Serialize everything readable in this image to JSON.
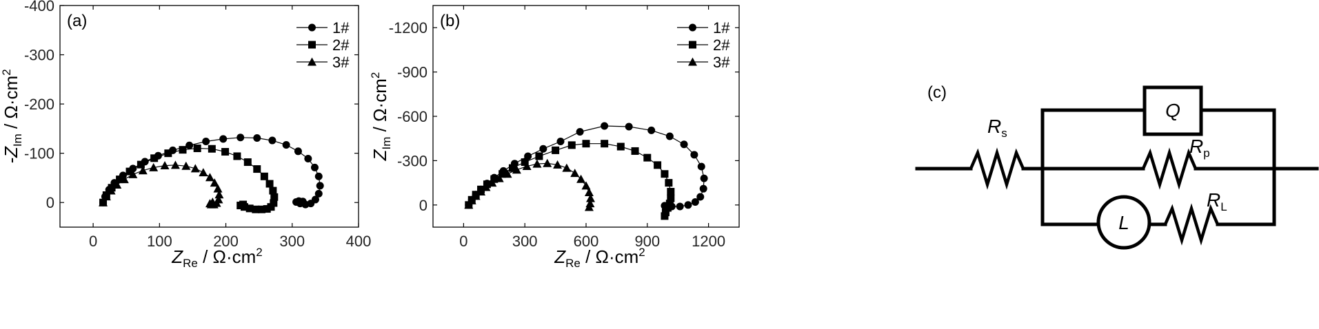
{
  "panels": {
    "a": {
      "label": "(a)"
    },
    "b": {
      "label": "(b)"
    },
    "c": {
      "label": "(c)"
    }
  },
  "axis_text": {
    "x_main": "Z",
    "x_sub": "Re",
    "x_unit": " / Ω·cm",
    "x_sup": "2",
    "y_a_main": "-Z",
    "y_b_main": "Z",
    "y_sub": "Im",
    "y_unit": " / Ω·cm",
    "y_sup": "2"
  },
  "circuit": {
    "rs": "R",
    "rs_sub": "s",
    "q": "Q",
    "rp": "R",
    "rp_sub": "p",
    "l": "L",
    "rl": "R",
    "rl_sub": "L"
  },
  "chart_data": [
    {
      "type": "scatter",
      "panel": "(a)",
      "xlabel": "Z_Re / Ω·cm2",
      "ylabel": "-Z_Im / Ω·cm2",
      "xlim": [
        -50,
        400
      ],
      "ylim": [
        -400,
        50
      ],
      "y_axis_inverted": true,
      "x_ticks": [
        0,
        100,
        200,
        300,
        400
      ],
      "y_ticks": [
        -400,
        -300,
        -200,
        -100,
        0
      ],
      "legend_position": "top-right",
      "series": [
        {
          "name": "1#",
          "marker": "circle",
          "x": [
            15,
            18,
            24,
            32,
            45,
            60,
            78,
            98,
            120,
            145,
            170,
            196,
            222,
            247,
            270,
            291,
            309,
            324,
            334,
            340,
            342,
            340,
            335,
            328,
            320,
            312,
            306,
            310,
            316
          ],
          "y": [
            0,
            -12,
            -26,
            -40,
            -55,
            -69,
            -83,
            -95,
            -106,
            -116,
            -124,
            -129,
            -132,
            -131,
            -126,
            -117,
            -104,
            -89,
            -71,
            -53,
            -34,
            -18,
            -6,
            2,
            4,
            2,
            -1,
            -3,
            -2
          ]
        },
        {
          "name": "2#",
          "marker": "square",
          "x": [
            15,
            20,
            28,
            40,
            55,
            72,
            92,
            113,
            135,
            157,
            179,
            199,
            217,
            233,
            247,
            258,
            266,
            271,
            273,
            272,
            268,
            262,
            254,
            245,
            236,
            228,
            222,
            226
          ],
          "y": [
            0,
            -15,
            -30,
            -47,
            -63,
            -77,
            -90,
            -100,
            -107,
            -110,
            -109,
            -103,
            -94,
            -82,
            -68,
            -53,
            -38,
            -24,
            -11,
            1,
            9,
            13,
            14,
            14,
            12,
            9,
            6,
            4
          ]
        },
        {
          "name": "3#",
          "marker": "triangle",
          "x": [
            15,
            20,
            27,
            36,
            47,
            60,
            75,
            91,
            108,
            124,
            140,
            154,
            166,
            176,
            183,
            188,
            190,
            189,
            186,
            182,
            178,
            176,
            180
          ],
          "y": [
            0,
            -12,
            -24,
            -36,
            -47,
            -57,
            -65,
            -71,
            -75,
            -76,
            -74,
            -69,
            -61,
            -51,
            -40,
            -28,
            -16,
            -6,
            1,
            4,
            4,
            2,
            -1
          ]
        }
      ]
    },
    {
      "type": "scatter",
      "panel": "(b)",
      "xlabel": "Z_Re / Ω·cm2",
      "ylabel": "Z_Im / Ω·cm2",
      "xlim": [
        -150,
        1350
      ],
      "ylim": [
        -1350,
        150
      ],
      "y_axis_inverted": true,
      "x_ticks": [
        0,
        300,
        600,
        900,
        1200
      ],
      "y_ticks": [
        -1200,
        -900,
        -600,
        -300,
        0
      ],
      "legend_position": "top-right",
      "series": [
        {
          "name": "1#",
          "marker": "circle",
          "x": [
            25,
            40,
            60,
            85,
            115,
            150,
            195,
            250,
            315,
            390,
            475,
            570,
            690,
            810,
            920,
            1010,
            1080,
            1130,
            1165,
            1178,
            1175,
            1160,
            1135,
            1100,
            1060,
            1020,
            985
          ],
          "y": [
            0,
            -35,
            -70,
            -105,
            -145,
            -185,
            -230,
            -280,
            -330,
            -380,
            -430,
            -495,
            -535,
            -530,
            -505,
            -465,
            -410,
            -340,
            -260,
            -180,
            -110,
            -55,
            -20,
            0,
            10,
            10,
            5
          ]
        },
        {
          "name": "2#",
          "marker": "square",
          "x": [
            25,
            40,
            60,
            85,
            115,
            150,
            190,
            240,
            300,
            370,
            450,
            530,
            600,
            690,
            770,
            840,
            900,
            950,
            985,
            1005,
            1015,
            1015,
            1010,
            1000,
            990,
            985
          ],
          "y": [
            0,
            -35,
            -70,
            -105,
            -140,
            -175,
            -210,
            -250,
            -290,
            -330,
            -370,
            -405,
            -415,
            -415,
            -395,
            -365,
            -320,
            -270,
            -210,
            -150,
            -90,
            -45,
            -10,
            20,
            50,
            75
          ]
        },
        {
          "name": "3#",
          "marker": "triangle",
          "x": [
            25,
            40,
            60,
            85,
            110,
            140,
            175,
            215,
            260,
            310,
            360,
            410,
            460,
            505,
            545,
            575,
            600,
            615,
            622,
            620,
            615
          ],
          "y": [
            0,
            -30,
            -60,
            -90,
            -120,
            -150,
            -180,
            -210,
            -238,
            -262,
            -278,
            -282,
            -272,
            -250,
            -215,
            -175,
            -130,
            -85,
            -45,
            -10,
            15
          ]
        }
      ]
    }
  ]
}
